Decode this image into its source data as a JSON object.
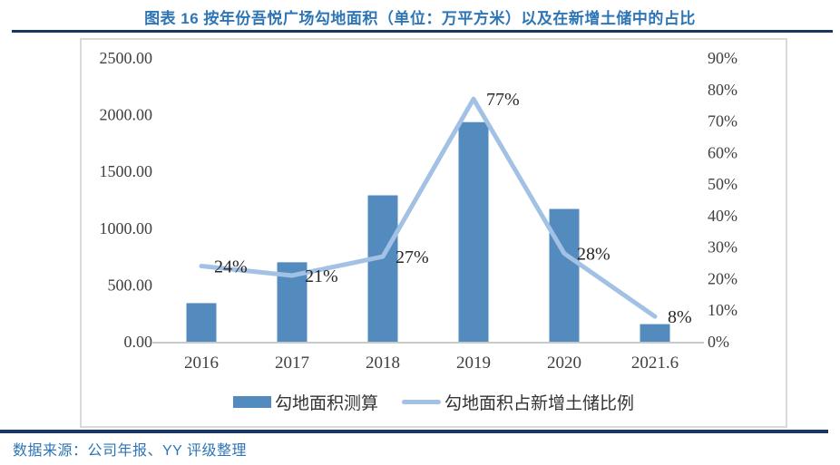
{
  "header": {
    "title": "图表 16 按年份吾悦广场勾地面积（单位：万平方米）以及在新增土储中的占比"
  },
  "chart_data": {
    "type": "bar",
    "subtype": "combo bar+line, dual axis",
    "title": "图表 16 按年份吾悦广场勾地面积（单位：万平方米）以及在新增土储中的占比",
    "categories": [
      "2016",
      "2017",
      "2018",
      "2019",
      "2020",
      "2021.6"
    ],
    "series": [
      {
        "name": "勾地面积测算",
        "type": "bar",
        "axis": "left",
        "values": [
          340,
          700,
          1290,
          1935,
          1170,
          155
        ]
      },
      {
        "name": "勾地面积占新增土储比例",
        "type": "line",
        "axis": "right",
        "values_percent": [
          24,
          21,
          27,
          77,
          28,
          8
        ],
        "point_labels": [
          "24%",
          "21%",
          "27%",
          "77%",
          "28%",
          "8%"
        ]
      }
    ],
    "left_axis": {
      "ticks": [
        "0.00",
        "500.00",
        "1000.00",
        "1500.00",
        "2000.00",
        "2500.00"
      ],
      "values": [
        0,
        500,
        1000,
        1500,
        2000,
        2500
      ],
      "min": 0,
      "max": 2500
    },
    "right_axis": {
      "ticks": [
        "0%",
        "10%",
        "20%",
        "30%",
        "40%",
        "50%",
        "60%",
        "70%",
        "80%",
        "90%"
      ],
      "values": [
        0,
        10,
        20,
        30,
        40,
        50,
        60,
        70,
        80,
        90
      ],
      "min": 0,
      "max": 90
    },
    "grid": false,
    "legend_position": "bottom",
    "xlabel": "",
    "ylabel": ""
  },
  "legend": {
    "bar_label": "勾地面积测算",
    "line_label": "勾地面积占新增土储比例"
  },
  "footer": {
    "source": "数据来源：公司年报、YY 评级整理"
  },
  "colors": {
    "title_blue": "#2E75B6",
    "rule_navy": "#17375E",
    "bar": "#548BBE",
    "line": "#A2C1E4",
    "axis_text": "#404040",
    "data_label_text": "#262626",
    "axis_line": "#C9C9C9",
    "card_border": "#D9D9D9"
  }
}
